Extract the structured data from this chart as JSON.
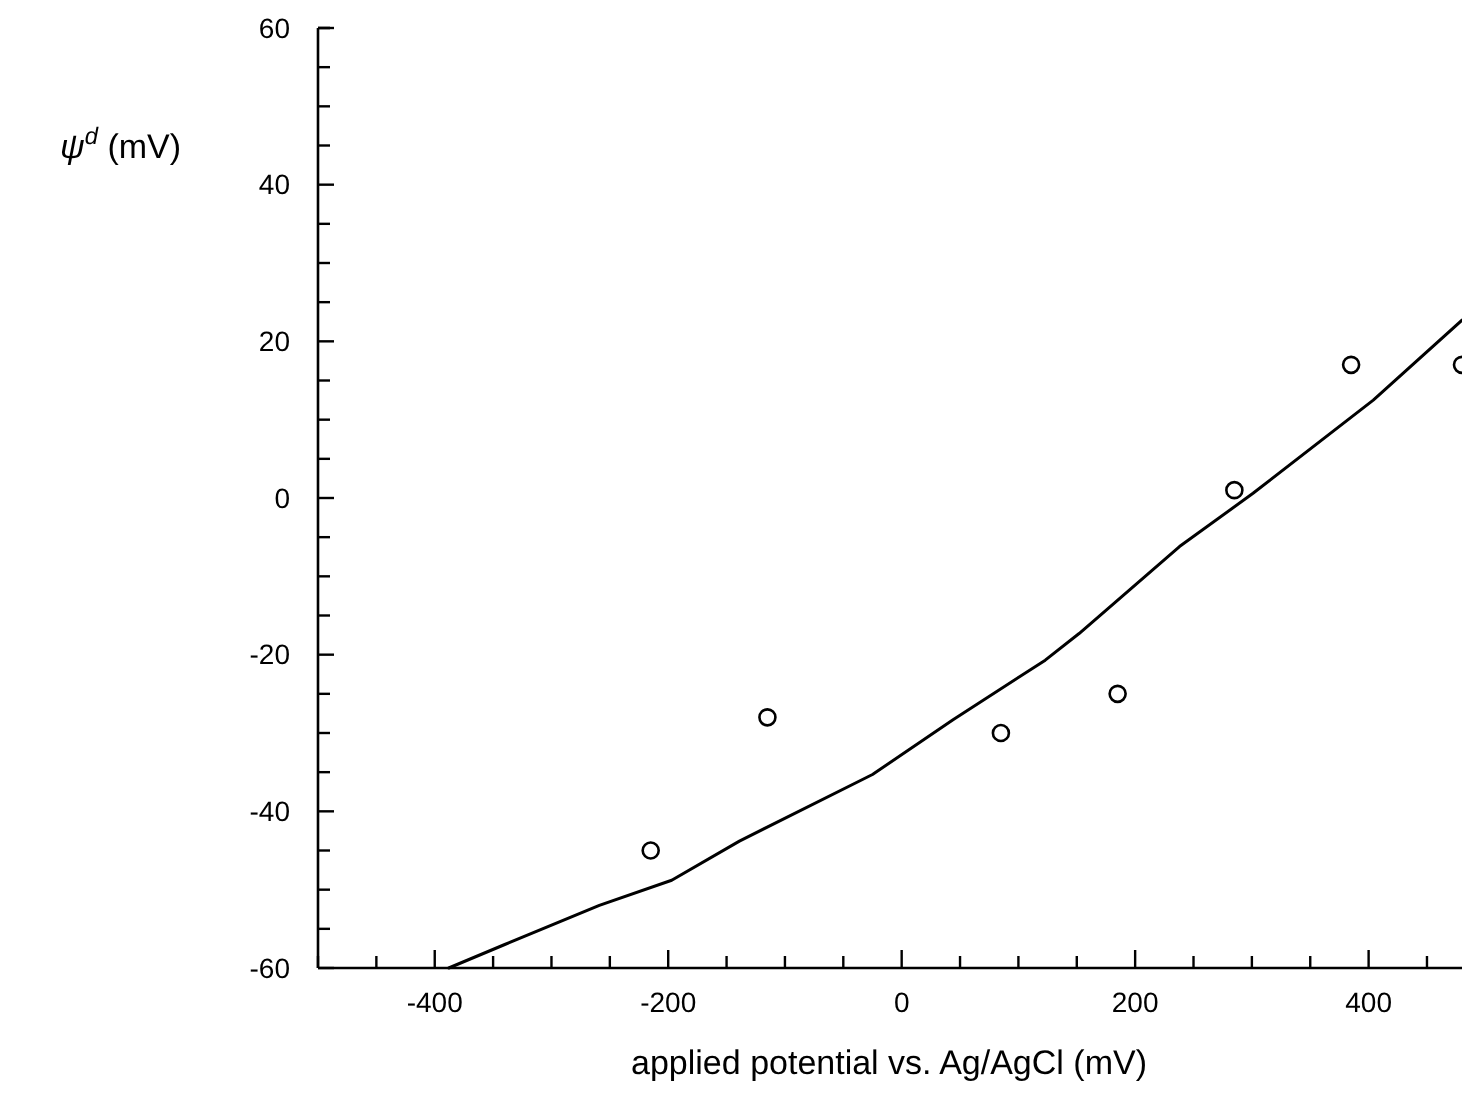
{
  "chart_data": {
    "type": "scatter",
    "xlabel": "applied potential vs. Ag/AgCl (mV)",
    "ylabel": "ψ$^{d}$ (mV)",
    "xlim": [
      -500,
      480
    ],
    "ylim": [
      -60,
      60
    ],
    "xticks": [
      {
        "value": -500,
        "label": null
      },
      {
        "value": -450,
        "label": null
      },
      -400,
      {
        "value": -350,
        "label": null
      },
      {
        "value": -300,
        "label": null
      },
      {
        "value": -250,
        "label": null
      },
      -200,
      {
        "value": -150,
        "label": null
      },
      {
        "value": -100,
        "label": null
      },
      {
        "value": -50,
        "label": null
      },
      0,
      {
        "value": 50,
        "label": null
      },
      {
        "value": 100,
        "label": null
      },
      {
        "value": 150,
        "label": null
      },
      200,
      {
        "value": 250,
        "label": null
      },
      {
        "value": 300,
        "label": null
      },
      {
        "value": 350,
        "label": null
      },
      400,
      {
        "value": 450,
        "label": null
      }
    ],
    "yticks": [
      -60,
      {
        "value": -55,
        "label": null
      },
      {
        "value": -50,
        "label": null
      },
      {
        "value": -45,
        "label": null
      },
      -40,
      {
        "value": -35,
        "label": null
      },
      {
        "value": -30,
        "label": null
      },
      {
        "value": -25,
        "label": null
      },
      -20,
      {
        "value": -15,
        "label": null
      },
      {
        "value": -10,
        "label": null
      },
      {
        "value": -5,
        "label": null
      },
      0,
      {
        "value": 5,
        "label": null
      },
      {
        "value": 10,
        "label": null
      },
      {
        "value": 15,
        "label": null
      },
      20,
      {
        "value": 25,
        "label": null
      },
      {
        "value": 30,
        "label": null
      },
      {
        "value": 35,
        "label": null
      },
      40,
      {
        "value": 45,
        "label": null
      },
      {
        "value": 50,
        "label": null
      },
      {
        "value": 55,
        "label": null
      },
      60
    ],
    "grid": false,
    "series": [
      {
        "color": "#000000",
        "marker": "circle",
        "x": [
          -215,
          -115,
          85,
          185,
          285,
          385,
          480
        ],
        "values": [
          -45,
          -28,
          -30,
          -25,
          1,
          17,
          17
        ]
      },
      {
        "type": "line",
        "color": "#000000",
        "marker": "none",
        "line_style": "solid",
        "x": [
          -388,
          -340,
          -259,
          -197,
          -139,
          -25,
          44,
          123,
          152,
          238,
          301,
          404,
          480
        ],
        "values": [
          -60,
          -57,
          -52,
          -48.8,
          -43.8,
          -35.3,
          -28.3,
          -20.7,
          -17.3,
          -6.2,
          0.6,
          12.5,
          22.7
        ]
      }
    ]
  }
}
